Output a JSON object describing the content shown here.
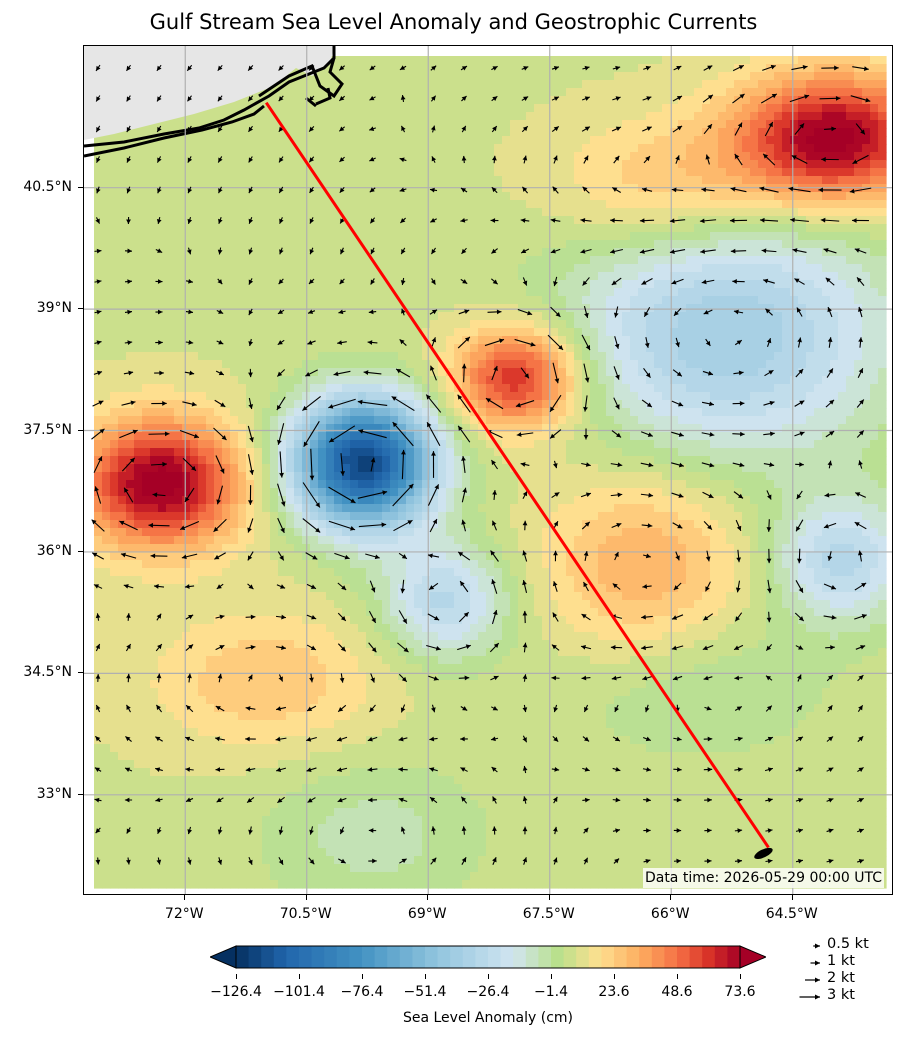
{
  "title": "Gulf Stream Sea Level Anomaly and Geostrophic Currents",
  "data_time": "Data time: 2026-05-29 00:00 UTC",
  "map": {
    "lon_range": [
      -73.25,
      -63.25
    ],
    "lat_range": [
      31.75,
      42.25
    ],
    "lat_ticks": [
      {
        "value": 40.5,
        "label": "40.5°N"
      },
      {
        "value": 39,
        "label": "39°N"
      },
      {
        "value": 37.5,
        "label": "37.5°N"
      },
      {
        "value": 36,
        "label": "36°N"
      },
      {
        "value": 34.5,
        "label": "34.5°N"
      },
      {
        "value": 33,
        "label": "33°N"
      }
    ],
    "lon_ticks": [
      {
        "value": -72,
        "label": "72°W"
      },
      {
        "value": -70.5,
        "label": "70.5°W"
      },
      {
        "value": -69,
        "label": "69°W"
      },
      {
        "value": -67.5,
        "label": "67.5°W"
      },
      {
        "value": -66,
        "label": "66°W"
      },
      {
        "value": -64.5,
        "label": "64.5°W"
      }
    ],
    "grid": true,
    "land_color": "#e6e6e6",
    "coastline_color": "#000000",
    "track": {
      "color": "#ff0000",
      "start": {
        "lon": -71.0,
        "lat": 41.55
      },
      "end": {
        "lon": -64.8,
        "lat": 32.35
      }
    },
    "anomaly_features": [
      {
        "lon": -72.3,
        "lat": 36.85,
        "value": 73,
        "sx": 0.7,
        "sy": 0.55
      },
      {
        "lon": -69.8,
        "lat": 37.1,
        "value": -126,
        "sx": 0.6,
        "sy": 0.55
      },
      {
        "lon": -67.9,
        "lat": 38.15,
        "value": 60,
        "sx": 0.55,
        "sy": 0.45
      },
      {
        "lon": -64.0,
        "lat": 41.1,
        "value": 73,
        "sx": 0.85,
        "sy": 0.55
      },
      {
        "lon": -65.3,
        "lat": 38.7,
        "value": -45,
        "sx": 1.4,
        "sy": 1.1
      },
      {
        "lon": -68.8,
        "lat": 35.4,
        "value": -35,
        "sx": 0.55,
        "sy": 0.5
      },
      {
        "lon": -63.9,
        "lat": 35.9,
        "value": -35,
        "sx": 0.6,
        "sy": 0.55
      },
      {
        "lon": -65.8,
        "lat": 34.4,
        "value": -12,
        "sx": 1.2,
        "sy": 0.7
      },
      {
        "lon": -69.7,
        "lat": 32.5,
        "value": -12,
        "sx": 1.0,
        "sy": 0.7
      },
      {
        "lon": -66.3,
        "lat": 35.8,
        "value": 28,
        "sx": 0.9,
        "sy": 0.9
      },
      {
        "lon": -71.0,
        "lat": 34.4,
        "value": 20,
        "sx": 1.0,
        "sy": 0.6
      },
      {
        "lon": -66.0,
        "lat": 40.5,
        "value": 25,
        "sx": 1.0,
        "sy": 0.6
      }
    ],
    "base_anomaly": 8
  },
  "colorbar": {
    "title": "Sea Level Anomaly (cm)",
    "min": -126.4,
    "max": 73.6,
    "tick_labels": [
      "−126.4",
      "−101.4",
      "−76.4",
      "−51.4",
      "−26.4",
      "−1.4",
      "23.6",
      "48.6",
      "73.6"
    ],
    "tick_values": [
      -126.4,
      -101.4,
      -76.4,
      -51.4,
      -26.4,
      -1.4,
      23.6,
      48.6,
      73.6
    ],
    "colors": [
      "#053061",
      "#2166ac",
      "#4393c3",
      "#92c5de",
      "#d1e5f0",
      "#b8e08a",
      "#fee090",
      "#fdae61",
      "#f46d43",
      "#d73027",
      "#a50026"
    ],
    "colormap_stops": [
      0,
      0.1,
      0.25,
      0.4,
      0.55,
      0.64,
      0.72,
      0.8,
      0.88,
      0.94,
      1
    ]
  },
  "quiver_key": [
    {
      "speed": 0.5,
      "label": "0.5 kt"
    },
    {
      "speed": 1,
      "label": "1 kt"
    },
    {
      "speed": 2,
      "label": "2 kt"
    },
    {
      "speed": 3,
      "label": "3 kt"
    }
  ]
}
